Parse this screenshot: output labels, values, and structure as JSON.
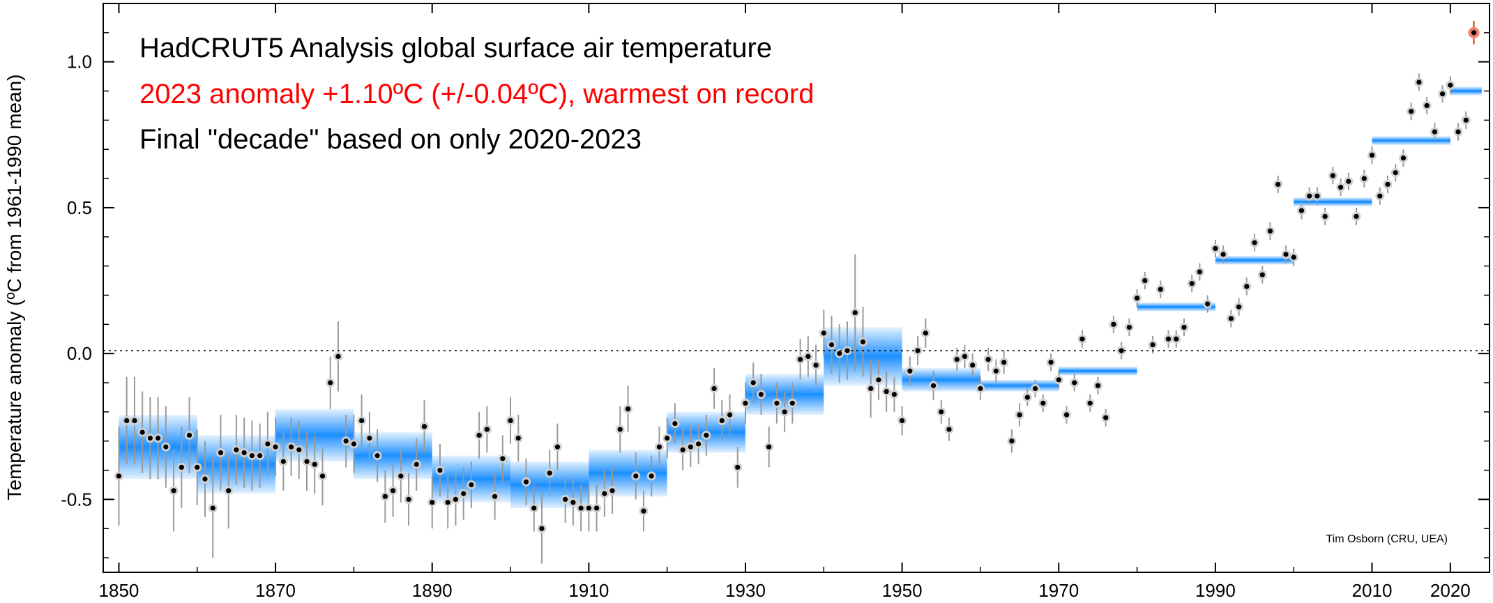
{
  "chart_data": {
    "type": "scatter",
    "title": "HadCRUT5 Analysis global surface air temperature",
    "subtitle": "2023 anomaly +1.10ºC (+/-0.04ºC), warmest on record",
    "note": "Final \"decade\" based on only 2020-2023",
    "credit": "Tim Osborn (CRU, UEA)",
    "xlabel": "",
    "ylabel": "Temperature anomaly (ºC from 1961-1990 mean)",
    "xlim": [
      1848,
      2025
    ],
    "ylim": [
      -0.75,
      1.2
    ],
    "xticks": [
      1850,
      1870,
      1890,
      1910,
      1930,
      1950,
      1970,
      1990,
      2010,
      2020
    ],
    "yticks": [
      -0.5,
      0.0,
      0.5,
      1.0
    ],
    "ytick_labels": [
      "-0.5",
      "0.0",
      "0.5",
      "1.0"
    ],
    "zero_line": true,
    "colors": {
      "annual": "#000000",
      "decade": "#1e90ff",
      "highlight": "#ff0000",
      "errorbar": "#999999"
    },
    "annual": {
      "x": [
        1850,
        1851,
        1852,
        1853,
        1854,
        1855,
        1856,
        1857,
        1858,
        1859,
        1860,
        1861,
        1862,
        1863,
        1864,
        1865,
        1866,
        1867,
        1868,
        1869,
        1870,
        1871,
        1872,
        1873,
        1874,
        1875,
        1876,
        1877,
        1878,
        1879,
        1880,
        1881,
        1882,
        1883,
        1884,
        1885,
        1886,
        1887,
        1888,
        1889,
        1890,
        1891,
        1892,
        1893,
        1894,
        1895,
        1896,
        1897,
        1898,
        1899,
        1900,
        1901,
        1902,
        1903,
        1904,
        1905,
        1906,
        1907,
        1908,
        1909,
        1910,
        1911,
        1912,
        1913,
        1914,
        1915,
        1916,
        1917,
        1918,
        1919,
        1920,
        1921,
        1922,
        1923,
        1924,
        1925,
        1926,
        1927,
        1928,
        1929,
        1930,
        1931,
        1932,
        1933,
        1934,
        1935,
        1936,
        1937,
        1938,
        1939,
        1940,
        1941,
        1942,
        1943,
        1944,
        1945,
        1946,
        1947,
        1948,
        1949,
        1950,
        1951,
        1952,
        1953,
        1954,
        1955,
        1956,
        1957,
        1958,
        1959,
        1960,
        1961,
        1962,
        1963,
        1964,
        1965,
        1966,
        1967,
        1968,
        1969,
        1970,
        1971,
        1972,
        1973,
        1974,
        1975,
        1976,
        1977,
        1978,
        1979,
        1980,
        1981,
        1982,
        1983,
        1984,
        1985,
        1986,
        1987,
        1988,
        1989,
        1990,
        1991,
        1992,
        1993,
        1994,
        1995,
        1996,
        1997,
        1998,
        1999,
        2000,
        2001,
        2002,
        2003,
        2004,
        2005,
        2006,
        2007,
        2008,
        2009,
        2010,
        2011,
        2012,
        2013,
        2014,
        2015,
        2016,
        2017,
        2018,
        2019,
        2020,
        2021,
        2022,
        2023
      ],
      "y": [
        -0.42,
        -0.23,
        -0.23,
        -0.27,
        -0.29,
        -0.29,
        -0.32,
        -0.47,
        -0.39,
        -0.28,
        -0.39,
        -0.43,
        -0.53,
        -0.34,
        -0.47,
        -0.33,
        -0.34,
        -0.35,
        -0.35,
        -0.31,
        -0.32,
        -0.37,
        -0.32,
        -0.33,
        -0.37,
        -0.38,
        -0.42,
        -0.1,
        -0.01,
        -0.3,
        -0.31,
        -0.23,
        -0.29,
        -0.35,
        -0.49,
        -0.47,
        -0.42,
        -0.5,
        -0.38,
        -0.25,
        -0.51,
        -0.4,
        -0.51,
        -0.5,
        -0.48,
        -0.45,
        -0.28,
        -0.26,
        -0.49,
        -0.36,
        -0.23,
        -0.29,
        -0.44,
        -0.53,
        -0.6,
        -0.41,
        -0.32,
        -0.5,
        -0.51,
        -0.53,
        -0.53,
        -0.53,
        -0.48,
        -0.47,
        -0.26,
        -0.19,
        -0.42,
        -0.54,
        -0.42,
        -0.32,
        -0.29,
        -0.24,
        -0.33,
        -0.32,
        -0.31,
        -0.28,
        -0.12,
        -0.23,
        -0.21,
        -0.39,
        -0.17,
        -0.1,
        -0.14,
        -0.32,
        -0.17,
        -0.2,
        -0.17,
        -0.02,
        -0.01,
        -0.04,
        0.07,
        0.03,
        0.0,
        0.01,
        0.14,
        0.04,
        -0.12,
        -0.09,
        -0.13,
        -0.14,
        -0.23,
        -0.06,
        0.01,
        0.07,
        -0.11,
        -0.2,
        -0.26,
        -0.02,
        -0.01,
        -0.04,
        -0.12,
        -0.02,
        -0.06,
        -0.03,
        -0.3,
        -0.21,
        -0.15,
        -0.12,
        -0.17,
        -0.03,
        -0.09,
        -0.21,
        -0.1,
        0.05,
        -0.17,
        -0.11,
        -0.22,
        0.1,
        0.01,
        0.09,
        0.19,
        0.25,
        0.03,
        0.22,
        0.05,
        0.05,
        0.09,
        0.24,
        0.28,
        0.17,
        0.36,
        0.34,
        0.12,
        0.16,
        0.23,
        0.38,
        0.27,
        0.42,
        0.58,
        0.34,
        0.33,
        0.49,
        0.54,
        0.54,
        0.47,
        0.61,
        0.57,
        0.59,
        0.47,
        0.6,
        0.68,
        0.54,
        0.58,
        0.62,
        0.67,
        0.83,
        0.93,
        0.85,
        0.76,
        0.89,
        0.92,
        0.76,
        0.8,
        1.1
      ],
      "uncertainty": [
        0.17,
        0.15,
        0.15,
        0.14,
        0.14,
        0.14,
        0.14,
        0.14,
        0.14,
        0.13,
        0.13,
        0.13,
        0.17,
        0.13,
        0.13,
        0.12,
        0.12,
        0.12,
        0.11,
        0.11,
        0.1,
        0.1,
        0.1,
        0.1,
        0.1,
        0.1,
        0.1,
        0.09,
        0.12,
        0.09,
        0.1,
        0.09,
        0.09,
        0.09,
        0.09,
        0.09,
        0.09,
        0.09,
        0.09,
        0.09,
        0.09,
        0.09,
        0.09,
        0.09,
        0.09,
        0.08,
        0.08,
        0.08,
        0.08,
        0.08,
        0.08,
        0.08,
        0.08,
        0.08,
        0.12,
        0.08,
        0.08,
        0.08,
        0.08,
        0.08,
        0.08,
        0.08,
        0.08,
        0.08,
        0.08,
        0.08,
        0.08,
        0.07,
        0.07,
        0.07,
        0.07,
        0.07,
        0.07,
        0.07,
        0.07,
        0.07,
        0.07,
        0.07,
        0.07,
        0.07,
        0.07,
        0.07,
        0.07,
        0.07,
        0.07,
        0.07,
        0.07,
        0.07,
        0.07,
        0.07,
        0.08,
        0.1,
        0.1,
        0.1,
        0.2,
        0.12,
        0.1,
        0.07,
        0.07,
        0.06,
        0.05,
        0.05,
        0.05,
        0.05,
        0.05,
        0.04,
        0.04,
        0.04,
        0.04,
        0.04,
        0.04,
        0.04,
        0.04,
        0.04,
        0.04,
        0.04,
        0.03,
        0.03,
        0.03,
        0.03,
        0.03,
        0.03,
        0.03,
        0.03,
        0.03,
        0.03,
        0.03,
        0.03,
        0.03,
        0.03,
        0.03,
        0.03,
        0.03,
        0.03,
        0.03,
        0.03,
        0.03,
        0.03,
        0.03,
        0.03,
        0.03,
        0.03,
        0.03,
        0.03,
        0.03,
        0.03,
        0.03,
        0.03,
        0.03,
        0.03,
        0.03,
        0.03,
        0.03,
        0.03,
        0.03,
        0.03,
        0.03,
        0.03,
        0.03,
        0.03,
        0.03,
        0.03,
        0.03,
        0.03,
        0.03,
        0.03,
        0.03,
        0.03,
        0.03,
        0.03,
        0.03,
        0.03,
        0.03,
        0.04
      ]
    },
    "decadal": {
      "start": [
        1850,
        1860,
        1870,
        1880,
        1890,
        1900,
        1910,
        1920,
        1930,
        1940,
        1950,
        1960,
        1970,
        1980,
        1990,
        2000,
        2010,
        2020
      ],
      "end": [
        1860,
        1870,
        1880,
        1890,
        1900,
        1910,
        1920,
        1930,
        1940,
        1950,
        1960,
        1970,
        1980,
        1990,
        2000,
        2010,
        2020,
        2024
      ],
      "y": [
        -0.32,
        -0.38,
        -0.28,
        -0.35,
        -0.43,
        -0.45,
        -0.41,
        -0.27,
        -0.14,
        -0.01,
        -0.09,
        -0.11,
        -0.06,
        0.16,
        0.32,
        0.52,
        0.73,
        0.9
      ],
      "uncertainty": [
        0.11,
        0.1,
        0.09,
        0.08,
        0.08,
        0.08,
        0.08,
        0.07,
        0.07,
        0.1,
        0.04,
        0.02,
        0.015,
        0.015,
        0.015,
        0.015,
        0.015,
        0.015
      ]
    }
  }
}
